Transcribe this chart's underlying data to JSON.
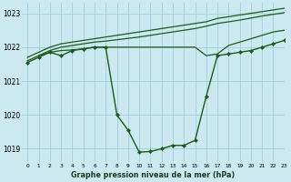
{
  "title": "Graphe pression niveau de la mer (hPa)",
  "background_color": "#cce8f0",
  "grid_color": "#9ecfdb",
  "line_color": "#1a5c1a",
  "marker_color": "#1a5c1a",
  "xlim": [
    -0.5,
    23
  ],
  "ylim": [
    1018.6,
    1023.3
  ],
  "yticks": [
    1019,
    1020,
    1021,
    1022,
    1023
  ],
  "xticks": [
    0,
    1,
    2,
    3,
    4,
    5,
    6,
    7,
    8,
    9,
    10,
    11,
    12,
    13,
    14,
    15,
    16,
    17,
    18,
    19,
    20,
    21,
    22,
    23
  ],
  "series": [
    {
      "x": [
        0,
        1,
        2,
        3,
        4,
        5,
        6,
        7,
        8,
        9,
        10,
        11,
        12,
        13,
        14,
        15,
        16,
        17,
        18,
        19,
        20,
        21,
        22,
        23
      ],
      "y": [
        1021.7,
        1021.85,
        1022.0,
        1022.1,
        1022.15,
        1022.2,
        1022.25,
        1022.3,
        1022.35,
        1022.4,
        1022.45,
        1022.5,
        1022.55,
        1022.6,
        1022.65,
        1022.7,
        1022.75,
        1022.85,
        1022.9,
        1022.95,
        1023.0,
        1023.05,
        1023.1,
        1023.15
      ],
      "marker": false,
      "lw": 0.9
    },
    {
      "x": [
        0,
        1,
        2,
        3,
        4,
        5,
        6,
        7,
        8,
        9,
        10,
        11,
        12,
        13,
        14,
        15,
        16,
        17,
        18,
        19,
        20,
        21,
        22,
        23
      ],
      "y": [
        1021.6,
        1021.75,
        1021.9,
        1022.0,
        1022.05,
        1022.1,
        1022.15,
        1022.18,
        1022.22,
        1022.26,
        1022.3,
        1022.35,
        1022.4,
        1022.45,
        1022.5,
        1022.55,
        1022.62,
        1022.7,
        1022.75,
        1022.8,
        1022.86,
        1022.92,
        1022.97,
        1023.02
      ],
      "marker": false,
      "lw": 0.9
    },
    {
      "x": [
        1,
        2,
        3,
        4,
        5,
        6,
        7,
        8,
        9,
        10,
        11,
        12,
        13,
        14,
        15,
        16,
        17,
        18,
        19,
        20,
        21,
        22,
        23
      ],
      "y": [
        1021.75,
        1021.85,
        1021.9,
        1021.92,
        1021.95,
        1022.0,
        1022.0,
        1022.0,
        1022.0,
        1022.0,
        1022.0,
        1022.0,
        1022.0,
        1022.0,
        1022.0,
        1021.75,
        1021.8,
        1022.05,
        1022.15,
        1022.25,
        1022.35,
        1022.45,
        1022.5
      ],
      "marker": false,
      "lw": 0.9
    },
    {
      "x": [
        0,
        1,
        2,
        3,
        4,
        5,
        6,
        7,
        8,
        9,
        10,
        11,
        12,
        13,
        14,
        15,
        16,
        17,
        18,
        19,
        20,
        21,
        22,
        23
      ],
      "y": [
        1021.55,
        1021.7,
        1021.85,
        1021.75,
        1021.9,
        1021.95,
        1022.0,
        1022.0,
        1020.0,
        1019.55,
        1018.9,
        1018.92,
        1019.0,
        1019.1,
        1019.1,
        1019.25,
        1020.55,
        1021.75,
        1021.8,
        1021.85,
        1021.9,
        1022.0,
        1022.1,
        1022.2
      ],
      "marker": true,
      "lw": 1.0
    }
  ]
}
